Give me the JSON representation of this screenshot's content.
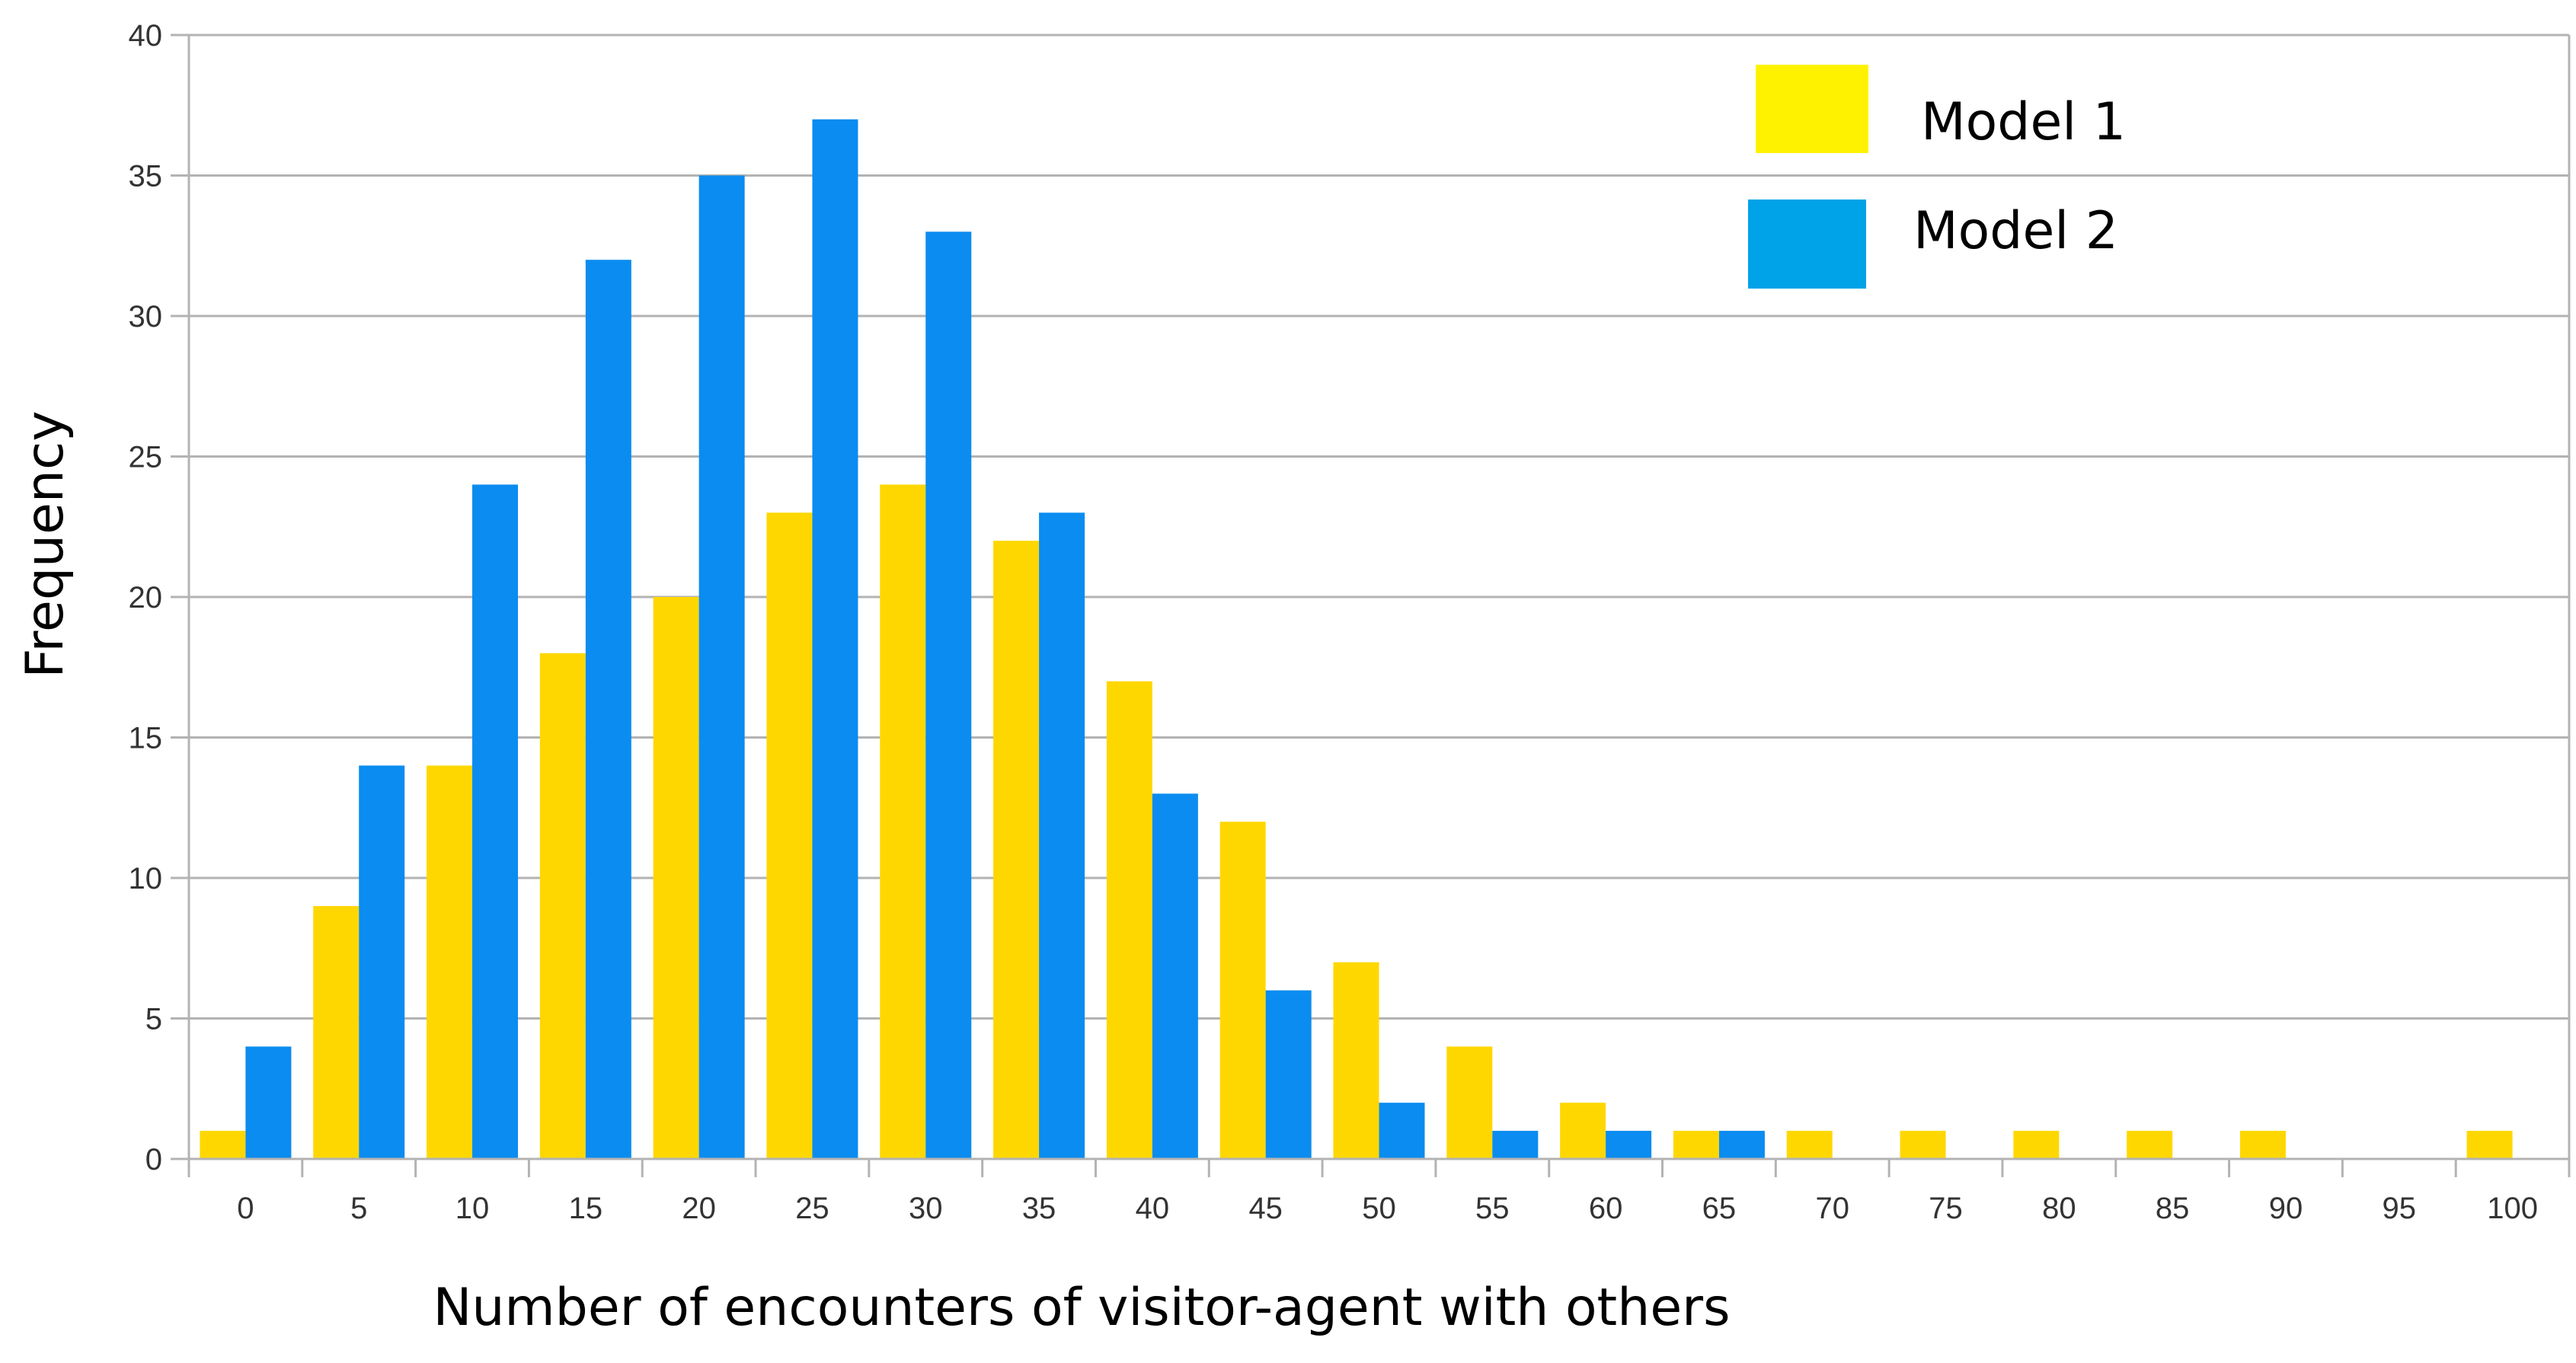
{
  "chart_data": {
    "type": "bar",
    "title": "",
    "xlabel": "Number of encounters of visitor-agent with others",
    "ylabel": "Frequency",
    "ylim": [
      0,
      40
    ],
    "yticks": [
      "0",
      "5",
      "10",
      "15",
      "20",
      "25",
      "30",
      "35",
      "40"
    ],
    "categories": [
      "0",
      "5",
      "10",
      "15",
      "20",
      "25",
      "30",
      "35",
      "40",
      "45",
      "50",
      "55",
      "60",
      "65",
      "70",
      "75",
      "80",
      "85",
      "90",
      "95",
      "100"
    ],
    "series": [
      {
        "name": "Model 1",
        "color": "#FFD700",
        "legend_color": "#FFF200",
        "values": [
          1,
          9,
          14,
          18,
          20,
          23,
          24,
          22,
          17,
          12,
          7,
          4,
          2,
          1,
          1,
          1,
          1,
          1,
          1,
          0,
          1
        ]
      },
      {
        "name": "Model 2",
        "color": "#0A8CF0",
        "legend_color": "#00A2E8",
        "values": [
          4,
          14,
          24,
          32,
          35,
          37,
          33,
          23,
          13,
          6,
          2,
          1,
          1,
          1,
          0,
          0,
          0,
          0,
          0,
          0,
          0
        ]
      }
    ],
    "grid": true,
    "legend_position": "top-right"
  }
}
